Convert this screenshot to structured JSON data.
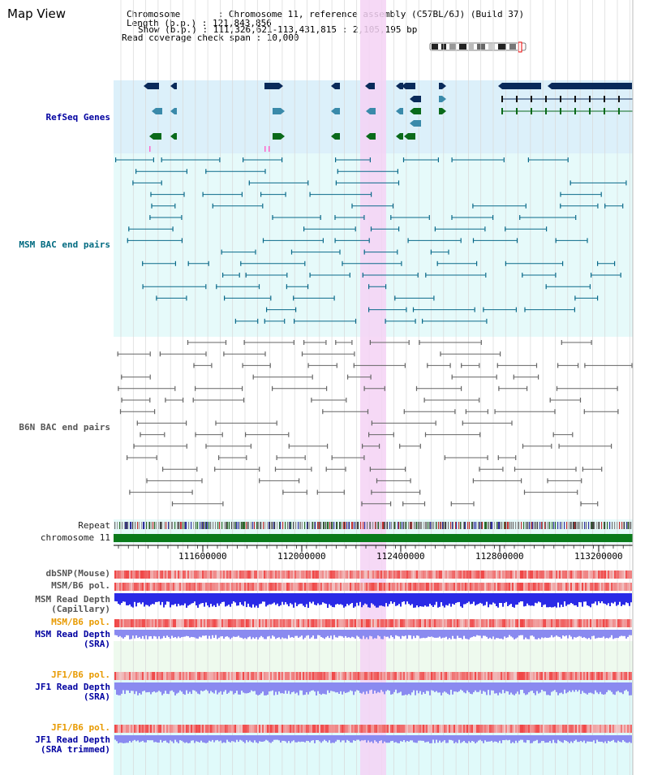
{
  "page": {
    "title": "Map View"
  },
  "info": {
    "chromosome": "Chromosome       : Chromosome 11, reference assembly (C57BL/6J) (Build 37)",
    "length": "Length (b.p.) : 121,843,856",
    "show": "Show (b.p.) : 111,326,621-113,431,815 : 2,105,195 bp",
    "read_span": "Read coverage check span : 10,000"
  },
  "tracks": {
    "refseq": "RefSeq Genes",
    "msm_bac": "MSM BAC end pairs",
    "b6n_bac": "B6N BAC end pairs",
    "repeat": "Repeat",
    "chromosome": "chromosome 11",
    "dbsnp": "dbSNP(Mouse)",
    "msm_b6_pol_1": "MSM/B6 pol.",
    "msm_read_depth_cap_1": "MSM Read Depth",
    "msm_read_depth_cap_2": "(Capillary)",
    "msm_b6_pol_2": "MSM/B6 pol.",
    "msm_read_depth_sra_1": "MSM Read Depth",
    "msm_read_depth_sra_2": "(SRA)",
    "jf1_b6_pol_1": "JF1/B6 pol.",
    "jf1_read_depth_sra_1": "JF1 Read Depth",
    "jf1_read_depth_sra_2": "(SRA)",
    "jf1_b6_pol_2": "JF1/B6 pol.",
    "jf1_read_depth_trim_1": "JF1 Read Depth",
    "jf1_read_depth_trim_2": "(SRA trimmed)"
  },
  "axis": {
    "ticks": [
      "111600000",
      "112000000",
      "112400000",
      "112800000",
      "113200000"
    ]
  },
  "colors": {
    "refseq_bg": "#dcf0fa",
    "bac_bg": "#e6fafa",
    "highlight": "#f5d2f5",
    "gene_dark": "#0a2a5a",
    "gene_teal": "#3a8aaa",
    "gene_green": "#0a6a1a",
    "msm_line": "#0a6a8a",
    "b6n_line": "#666666",
    "chrom_green": "#0a7a1a",
    "snp_red": "#f04a4a",
    "depth_blue": "#2a2ae6",
    "depth_light": "#8a8af0"
  }
}
